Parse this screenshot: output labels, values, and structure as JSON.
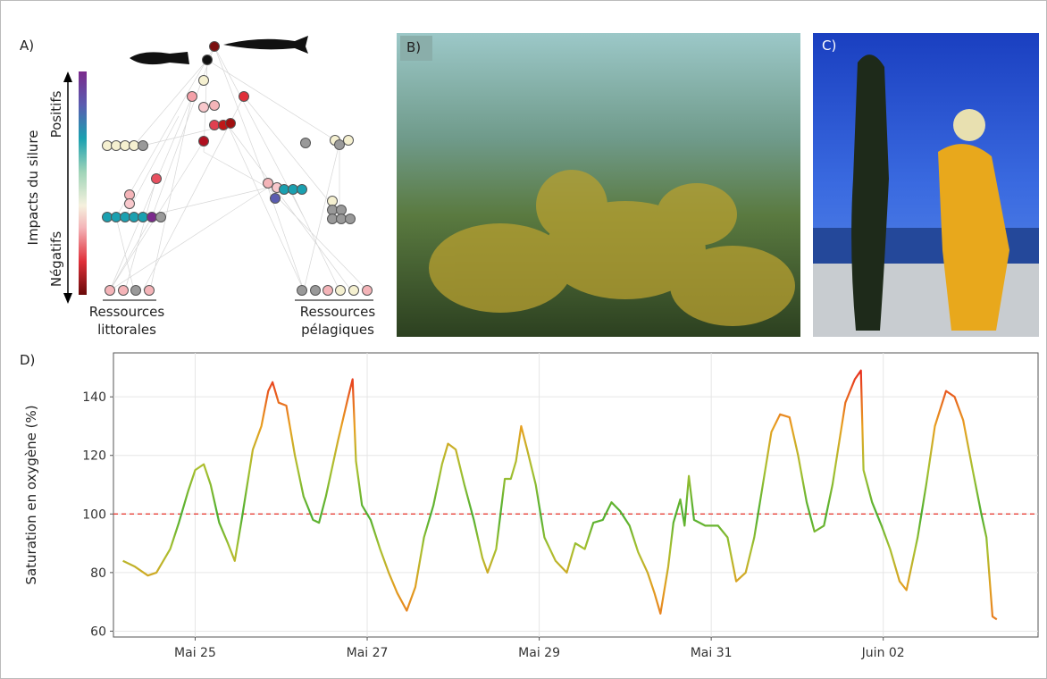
{
  "panels": {
    "a": {
      "label": "A)",
      "axis_label": "Impacts du silure",
      "top_label": "Positifs",
      "bottom_label": "Négatifs",
      "littoral": [
        "Ressources",
        "littorales"
      ],
      "pelagic": [
        "Ressources",
        "pélagiques"
      ]
    },
    "b": {
      "label": "B)"
    },
    "c": {
      "label": "C)"
    }
  },
  "chart_data": {
    "type": "line",
    "label": "D)",
    "y_label": "Saturation en oxygène (%)",
    "x": [
      24.16,
      24.3,
      24.45,
      24.55,
      24.71,
      24.81,
      24.92,
      25.0,
      25.1,
      25.18,
      25.28,
      25.38,
      25.46,
      25.54,
      25.67,
      25.77,
      25.85,
      25.9,
      25.97,
      26.06,
      26.16,
      26.26,
      26.37,
      26.44,
      26.52,
      26.66,
      26.78,
      26.83,
      26.87,
      26.94,
      27.04,
      27.15,
      27.25,
      27.35,
      27.46,
      27.56,
      27.66,
      27.77,
      27.87,
      27.94,
      28.03,
      28.13,
      28.24,
      28.34,
      28.4,
      28.5,
      28.6,
      28.67,
      28.73,
      28.79,
      28.86,
      28.96,
      29.06,
      29.19,
      29.32,
      29.42,
      29.53,
      29.63,
      29.74,
      29.84,
      29.94,
      30.05,
      30.15,
      30.26,
      30.34,
      30.41,
      30.5,
      30.56,
      30.64,
      30.69,
      30.74,
      30.8,
      30.93,
      31.08,
      31.19,
      31.29,
      31.4,
      31.5,
      31.6,
      31.7,
      31.8,
      31.91,
      32.01,
      32.11,
      32.2,
      32.31,
      32.41,
      32.56,
      32.67,
      32.74,
      32.77,
      32.87,
      32.98,
      33.08,
      33.19,
      33.27,
      33.4,
      33.5,
      33.6,
      33.73,
      33.83,
      33.93,
      34.04,
      34.14,
      34.2,
      34.27,
      34.32
    ],
    "values": [
      84,
      82,
      79,
      80,
      88,
      97,
      108,
      115,
      117,
      110,
      97,
      90,
      84,
      98,
      122,
      130,
      142,
      145,
      138,
      137,
      120,
      106,
      98,
      97,
      106,
      125,
      140,
      146,
      118,
      103,
      98,
      88,
      80,
      73,
      67,
      75,
      92,
      103,
      117,
      124,
      122,
      110,
      98,
      85,
      80,
      88,
      112,
      112,
      118,
      130,
      122,
      110,
      92,
      84,
      80,
      90,
      88,
      97,
      98,
      104,
      101,
      96,
      87,
      80,
      73,
      66,
      82,
      97,
      105,
      96,
      113,
      98,
      96,
      96,
      92,
      77,
      80,
      92,
      110,
      128,
      134,
      133,
      120,
      104,
      94,
      96,
      110,
      138,
      146,
      149,
      115,
      104,
      96,
      88,
      77,
      74,
      92,
      110,
      130,
      142,
      140,
      132,
      115,
      100,
      92,
      65,
      64
    ],
    "xlim": [
      24.05,
      34.8
    ],
    "ylim": [
      58,
      155
    ],
    "xticks": [
      {
        "value": 25,
        "label": "Mai 25"
      },
      {
        "value": 27,
        "label": "Mai 27"
      },
      {
        "value": 29,
        "label": "Mai 29"
      },
      {
        "value": 31,
        "label": "Mai 31"
      },
      {
        "value": 33,
        "label": "Juin 02"
      }
    ],
    "yticks": [
      60,
      80,
      100,
      120,
      140
    ],
    "grid": true,
    "reference_line": 100,
    "reference_color": "#e8433a"
  }
}
